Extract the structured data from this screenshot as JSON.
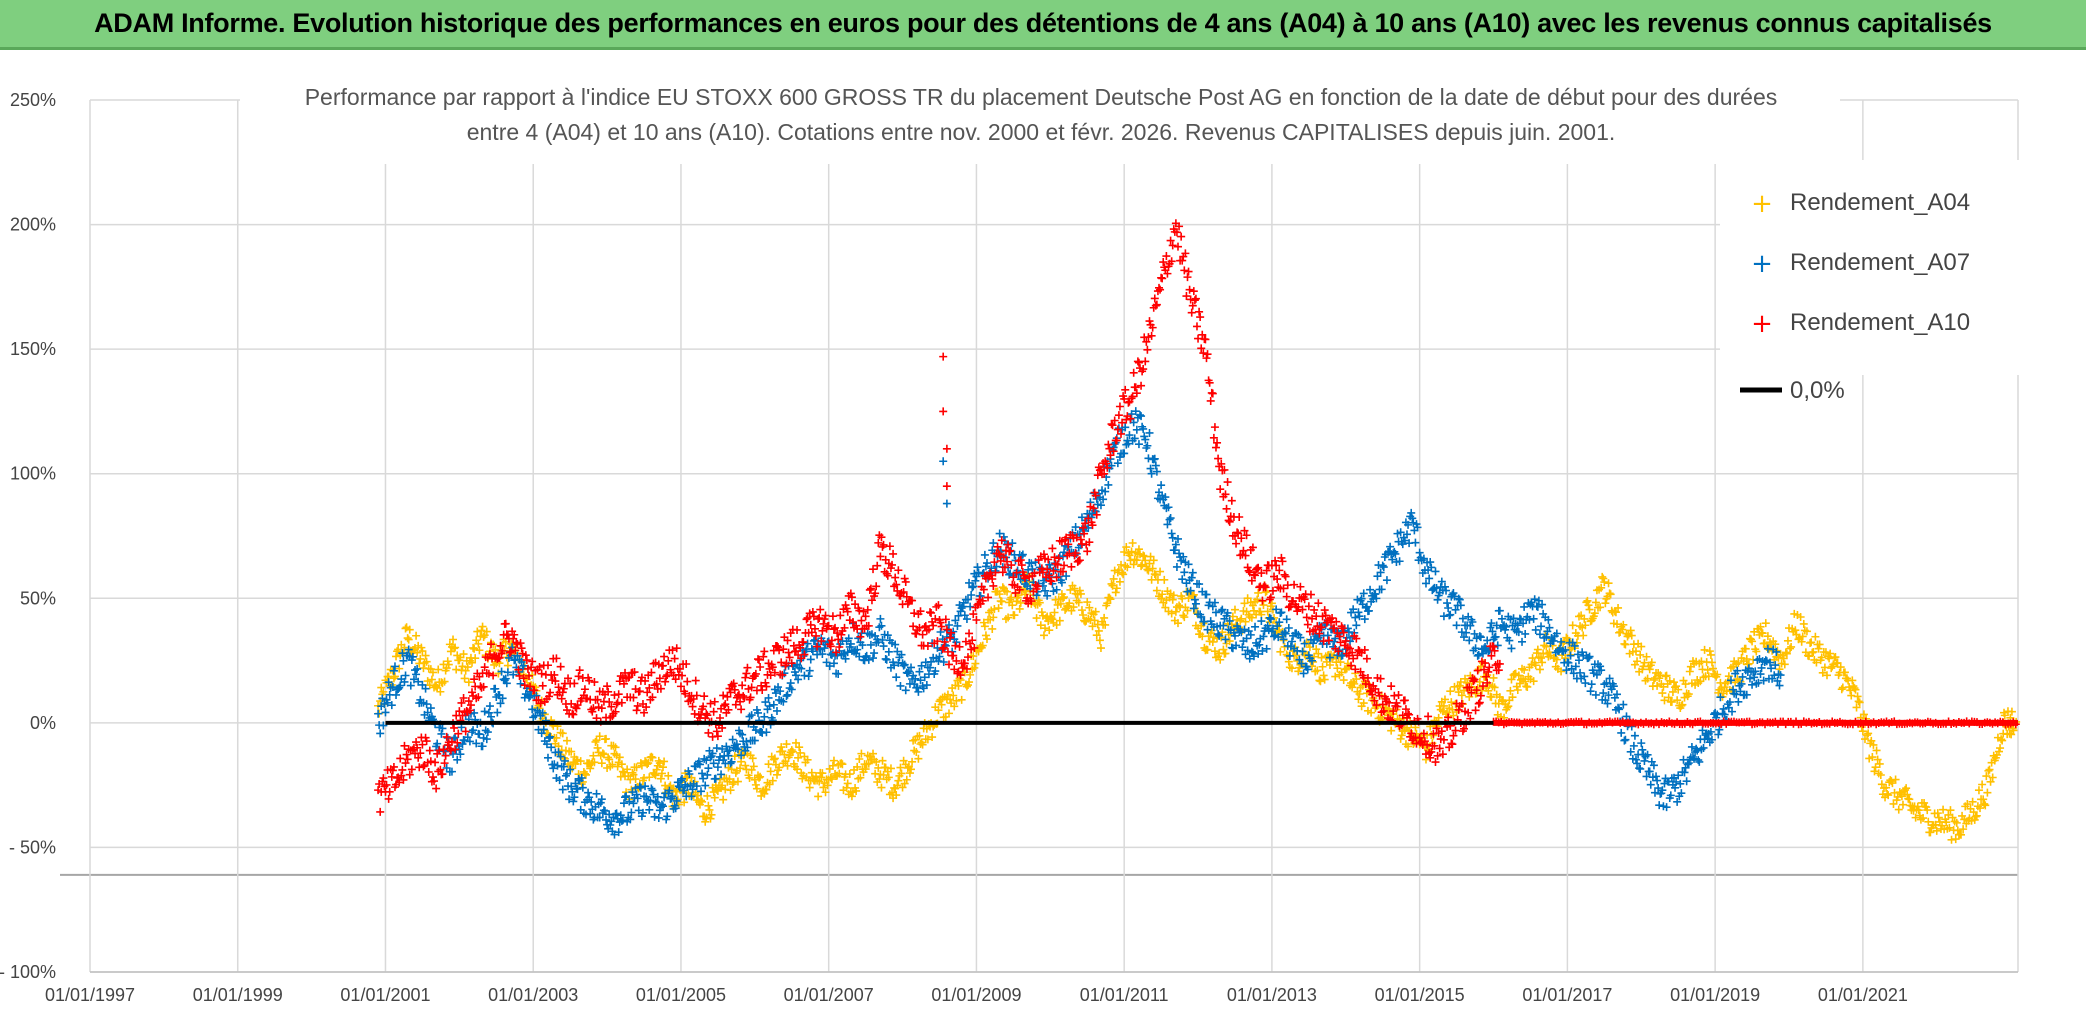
{
  "banner": {
    "title": "ADAM Informe. Evolution historique des performances en euros pour des détentions de 4 ans (A04) à 10 ans (A10) avec les revenus connus capitalisés"
  },
  "colors": {
    "banner_bg": "#7fcf7f",
    "A04": "#ffc000",
    "A07": "#0070c0",
    "A10": "#ff0000",
    "zero": "#000000",
    "grid": "#d9d9d9"
  },
  "chart_data": {
    "type": "scatter",
    "title_line1": "Performance par rapport à l'indice EU STOXX 600 GROSS TR  du placement Deutsche Post AG en fonction de la date de début pour des durées",
    "title_line2": "entre 4 (A04) et 10 ans (A10). Cotations entre nov. 2000 et févr. 2026. Revenus CAPITALISES depuis juin. 2001.",
    "xlabel": "",
    "ylabel": "",
    "x_tick_labels": [
      "01/01/1997",
      "01/01/1999",
      "01/01/2001",
      "01/01/2003",
      "01/01/2005",
      "01/01/2007",
      "01/01/2009",
      "01/01/2011",
      "01/01/2013",
      "01/01/2015",
      "01/01/2017",
      "01/01/2019",
      "01/01/2021"
    ],
    "x_tick_years": [
      1997,
      1999,
      2001,
      2003,
      2005,
      2007,
      2009,
      2011,
      2013,
      2015,
      2017,
      2019,
      2021
    ],
    "xlim": [
      1997,
      2023.1
    ],
    "y_tick_labels": [
      "250%",
      "200%",
      "150%",
      "100%",
      "50%",
      "0%",
      "- 50%",
      "- 100%"
    ],
    "y_tick_values": [
      250,
      200,
      150,
      100,
      50,
      0,
      -50,
      -100
    ],
    "ylim": [
      -100,
      250
    ],
    "legend_position": "top-right",
    "series": [
      {
        "name": "Rendement_A04",
        "marker": "+",
        "x": [
          2000.9,
          2001.1,
          2001.3,
          2001.5,
          2001.7,
          2001.9,
          2002.1,
          2002.3,
          2002.5,
          2002.7,
          2002.9,
          2003.1,
          2003.3,
          2003.5,
          2003.7,
          2003.9,
          2004.1,
          2004.3,
          2004.5,
          2004.7,
          2004.9,
          2005.1,
          2005.3,
          2005.5,
          2005.7,
          2005.9,
          2006.1,
          2006.3,
          2006.5,
          2006.7,
          2006.9,
          2007.1,
          2007.3,
          2007.5,
          2007.7,
          2007.9,
          2008.1,
          2008.3,
          2008.5,
          2008.7,
          2008.9,
          2009.1,
          2009.3,
          2009.5,
          2009.7,
          2009.9,
          2010.1,
          2010.3,
          2010.5,
          2010.7,
          2010.9,
          2011.1,
          2011.3,
          2011.5,
          2011.7,
          2011.9,
          2012.1,
          2012.3,
          2012.5,
          2012.7,
          2012.9,
          2013.1,
          2013.3,
          2013.5,
          2013.7,
          2013.9,
          2014.1,
          2014.3,
          2014.5,
          2014.7,
          2014.9,
          2015.1,
          2015.3,
          2015.5,
          2015.7,
          2015.9,
          2016.1,
          2016.3,
          2016.5,
          2016.7,
          2016.9,
          2017.1,
          2017.3,
          2017.5,
          2017.7,
          2017.9,
          2018.1,
          2018.3,
          2018.5,
          2018.7,
          2018.9,
          2019.1,
          2019.3,
          2019.5,
          2019.7,
          2019.9,
          2020.1,
          2020.3,
          2020.5,
          2020.7,
          2020.9,
          2021.1,
          2021.3,
          2021.5,
          2021.7,
          2021.9,
          2022.1,
          2022.3,
          2022.5,
          2022.7,
          2022.9,
          2023.05
        ],
        "values": [
          5,
          20,
          35,
          25,
          15,
          30,
          20,
          35,
          25,
          30,
          20,
          5,
          -5,
          -15,
          -20,
          -10,
          -15,
          -25,
          -20,
          -15,
          -30,
          -25,
          -35,
          -30,
          -20,
          -15,
          -25,
          -15,
          -10,
          -20,
          -25,
          -20,
          -25,
          -15,
          -20,
          -25,
          -15,
          -5,
          5,
          10,
          20,
          35,
          50,
          45,
          55,
          40,
          45,
          50,
          45,
          35,
          60,
          70,
          65,
          55,
          45,
          50,
          35,
          30,
          40,
          45,
          50,
          35,
          25,
          30,
          20,
          25,
          15,
          10,
          5,
          0,
          -5,
          -10,
          5,
          10,
          15,
          20,
          5,
          15,
          20,
          30,
          25,
          35,
          45,
          55,
          40,
          30,
          20,
          15,
          10,
          20,
          25,
          15,
          20,
          30,
          35,
          25,
          40,
          30,
          25,
          20,
          10,
          -10,
          -25,
          -30,
          -35,
          -38,
          -40,
          -42,
          -35,
          -25,
          0,
          0
        ],
        "spread": 6
      },
      {
        "name": "Rendement_A07",
        "marker": "+",
        "x": [
          2000.9,
          2001.1,
          2001.3,
          2001.5,
          2001.7,
          2001.9,
          2002.1,
          2002.3,
          2002.5,
          2002.7,
          2002.9,
          2003.1,
          2003.3,
          2003.5,
          2003.7,
          2003.9,
          2004.1,
          2004.3,
          2004.5,
          2004.7,
          2004.9,
          2005.1,
          2005.3,
          2005.5,
          2005.7,
          2005.9,
          2006.1,
          2006.3,
          2006.5,
          2006.7,
          2006.9,
          2007.1,
          2007.3,
          2007.5,
          2007.7,
          2007.9,
          2008.1,
          2008.3,
          2008.5,
          2008.7,
          2008.9,
          2009.1,
          2009.3,
          2009.5,
          2009.7,
          2009.9,
          2010.1,
          2010.3,
          2010.5,
          2010.7,
          2010.9,
          2011.1,
          2011.3,
          2011.5,
          2011.7,
          2011.9,
          2012.1,
          2012.3,
          2012.5,
          2012.7,
          2012.9,
          2013.1,
          2013.3,
          2013.5,
          2013.7,
          2013.9,
          2014.1,
          2014.3,
          2014.5,
          2014.7,
          2014.9,
          2015.1,
          2015.3,
          2015.5,
          2015.7,
          2015.9,
          2016.1,
          2016.3,
          2016.5,
          2016.7,
          2016.9,
          2017.1,
          2017.3,
          2017.5,
          2017.7,
          2017.9,
          2018.1,
          2018.3,
          2018.5,
          2018.7,
          2018.9,
          2019.1,
          2019.3,
          2019.5,
          2019.7,
          2019.9
        ],
        "values": [
          0,
          15,
          25,
          10,
          -5,
          -15,
          0,
          -5,
          10,
          25,
          15,
          0,
          -15,
          -25,
          -30,
          -35,
          -38,
          -35,
          -30,
          -35,
          -30,
          -25,
          -20,
          -15,
          -10,
          -5,
          0,
          10,
          20,
          25,
          30,
          25,
          35,
          30,
          35,
          25,
          15,
          20,
          30,
          35,
          50,
          60,
          70,
          65,
          60,
          55,
          60,
          70,
          80,
          95,
          110,
          120,
          115,
          90,
          70,
          55,
          45,
          40,
          35,
          30,
          35,
          40,
          30,
          25,
          35,
          30,
          40,
          50,
          60,
          70,
          80,
          60,
          50,
          45,
          35,
          30,
          40,
          35,
          45,
          40,
          30,
          25,
          20,
          15,
          5,
          -10,
          -20,
          -30,
          -25,
          -15,
          -5,
          5,
          15,
          20,
          25,
          20
        ],
        "spread": 7
      },
      {
        "name": "Rendement_A10",
        "marker": "+",
        "x": [
          2000.9,
          2001.1,
          2001.3,
          2001.5,
          2001.7,
          2001.9,
          2002.1,
          2002.3,
          2002.5,
          2002.7,
          2002.9,
          2003.1,
          2003.3,
          2003.5,
          2003.7,
          2003.9,
          2004.1,
          2004.3,
          2004.5,
          2004.7,
          2004.9,
          2005.1,
          2005.3,
          2005.5,
          2005.7,
          2005.9,
          2006.1,
          2006.3,
          2006.5,
          2006.7,
          2006.9,
          2007.1,
          2007.3,
          2007.5,
          2007.7,
          2007.9,
          2008.1,
          2008.3,
          2008.5,
          2008.7,
          2008.9,
          2009.1,
          2009.3,
          2009.5,
          2009.7,
          2009.9,
          2010.1,
          2010.3,
          2010.5,
          2010.7,
          2010.9,
          2011.1,
          2011.3,
          2011.5,
          2011.7,
          2011.9,
          2012.1,
          2012.3,
          2012.5,
          2012.7,
          2012.9,
          2013.1,
          2013.3,
          2013.5,
          2013.7,
          2013.9,
          2014.1,
          2014.3,
          2014.5,
          2014.7,
          2014.9,
          2015.1,
          2015.3,
          2015.5,
          2015.7,
          2015.9,
          2016.1
        ],
        "values": [
          -30,
          -25,
          -15,
          -10,
          -20,
          -5,
          5,
          15,
          30,
          35,
          20,
          15,
          20,
          10,
          15,
          5,
          10,
          15,
          10,
          20,
          25,
          15,
          5,
          0,
          10,
          15,
          20,
          25,
          30,
          35,
          40,
          35,
          45,
          40,
          70,
          60,
          45,
          35,
          40,
          25,
          30,
          50,
          70,
          60,
          55,
          60,
          65,
          70,
          75,
          100,
          120,
          130,
          150,
          175,
          200,
          170,
          150,
          100,
          80,
          65,
          55,
          60,
          50,
          45,
          40,
          35,
          30,
          20,
          10,
          5,
          0,
          -5,
          -10,
          0,
          10,
          20,
          30
        ],
        "spread": 8
      }
    ],
    "extra_points": {
      "A10_spike_2008": [
        [
          2008.55,
          147
        ],
        [
          2008.55,
          125
        ],
        [
          2008.6,
          110
        ],
        [
          2008.6,
          95
        ]
      ],
      "A07_spike_2008": [
        [
          2008.55,
          105
        ],
        [
          2008.6,
          88
        ]
      ]
    },
    "flat_zero_segments": [
      {
        "series": "Rendement_A04",
        "from": 2022.9,
        "to": 2023.1
      },
      {
        "series": "Rendement_A10",
        "from": 2016.0,
        "to": 2023.1
      }
    ],
    "reference_line": {
      "name": "0,0%",
      "value": 0,
      "from": 2001.0,
      "to": 2023.1
    }
  }
}
